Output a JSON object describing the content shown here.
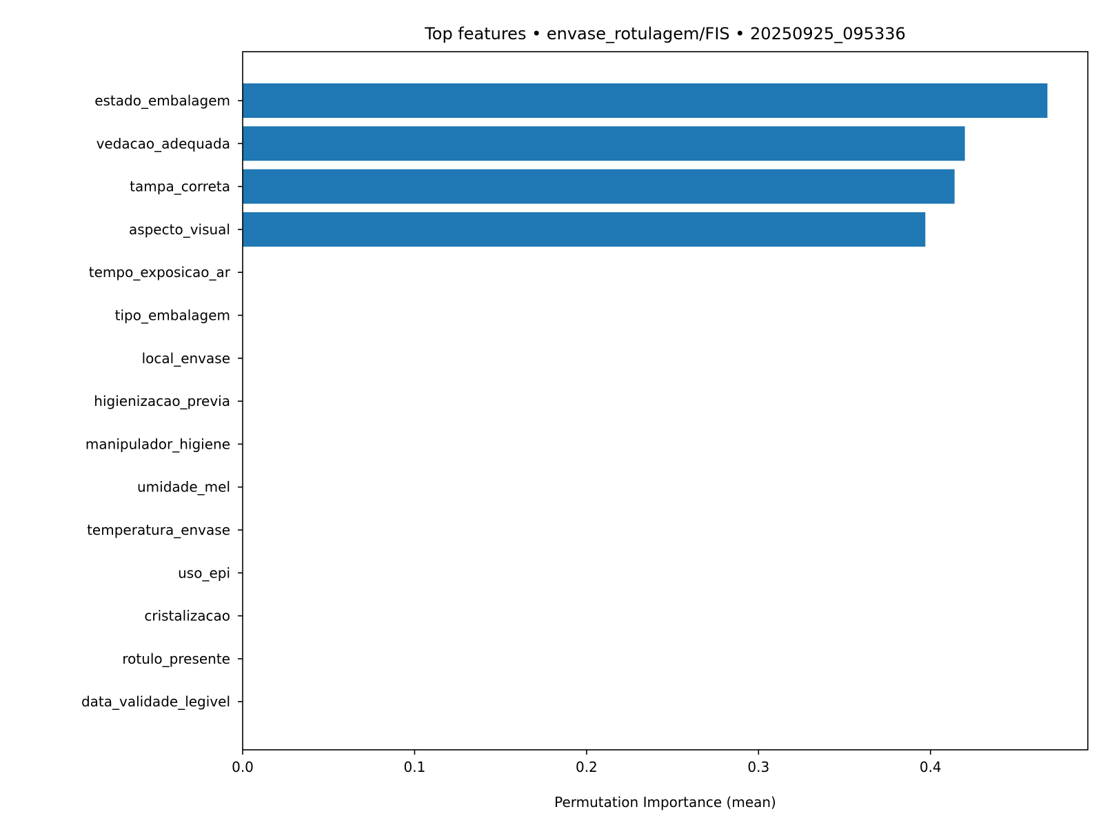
{
  "chart_data": {
    "type": "bar",
    "orientation": "horizontal",
    "title": "Top features • envase_rotulagem/FIS • 20250925_095336",
    "xlabel": "Permutation Importance (mean)",
    "ylabel": "",
    "xlim": [
      0,
      0.4915
    ],
    "xticks": [
      0.0,
      0.1,
      0.2,
      0.3,
      0.4
    ],
    "xtick_labels": [
      "0.0",
      "0.1",
      "0.2",
      "0.3",
      "0.4"
    ],
    "grid": false,
    "bar_color": "#1f77b4",
    "categories": [
      "estado_embalagem",
      "vedacao_adequada",
      "tampa_correta",
      "aspecto_visual",
      "tempo_exposicao_ar",
      "tipo_embalagem",
      "local_envase",
      "higienizacao_previa",
      "manipulador_higiene",
      "umidade_mel",
      "temperatura_envase",
      "uso_epi",
      "cristalizacao",
      "rotulo_presente",
      "data_validade_legivel"
    ],
    "values": [
      0.468,
      0.42,
      0.414,
      0.397,
      0,
      0,
      0,
      0,
      0,
      0,
      0,
      0,
      0,
      0,
      0
    ]
  }
}
